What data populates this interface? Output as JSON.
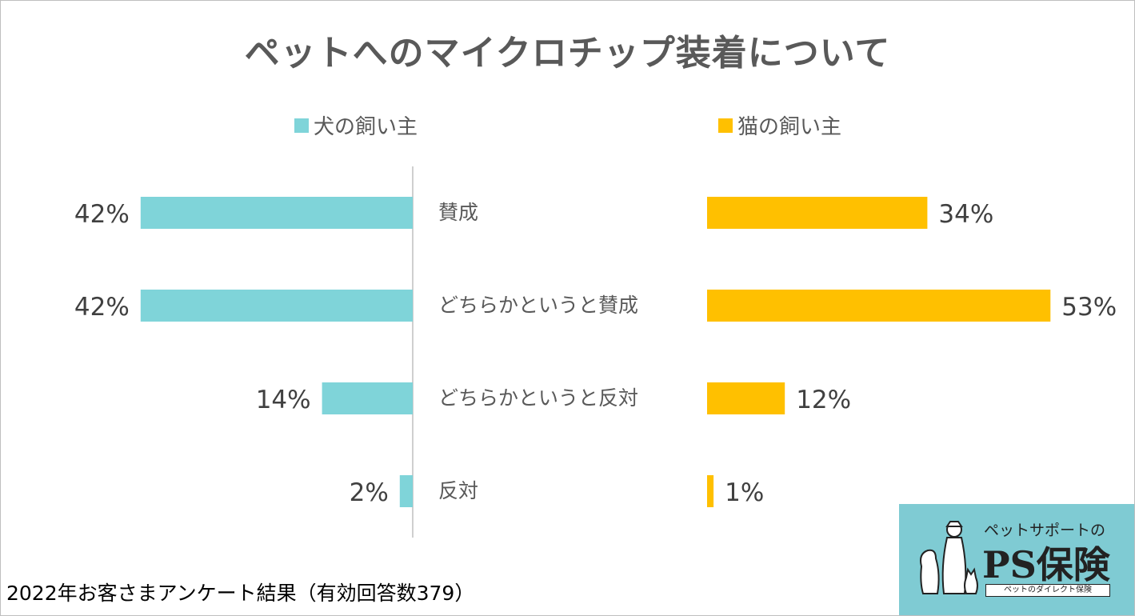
{
  "chart_data": {
    "type": "bar",
    "title": "ペットへのマイクロチップ装着について",
    "categories": [
      "賛成",
      "どちらかというと賛成",
      "どちらかというと反対",
      "反対"
    ],
    "series": [
      {
        "name": "犬の飼い主",
        "values": [
          42,
          42,
          14,
          2
        ],
        "labels": [
          "42%",
          "42%",
          "14%",
          "2%"
        ],
        "color": "#7fd4d9"
      },
      {
        "name": "猫の飼い主",
        "values": [
          34,
          53,
          12,
          1
        ],
        "labels": [
          "34%",
          "53%",
          "12%",
          "1%"
        ],
        "color": "#ffc000"
      }
    ],
    "unit": "%",
    "xlim": [
      0,
      60
    ]
  },
  "footnote": "2022年お客さまアンケート結果（有効回答数379）",
  "logo": {
    "subtitle": "ペットサポートの",
    "name": "PS保険",
    "tagline": "ペットのダイレクト保険"
  },
  "colors": {
    "text": "#595959",
    "axis": "#bfbfbf",
    "logo_bg": "#7fcbd3"
  }
}
